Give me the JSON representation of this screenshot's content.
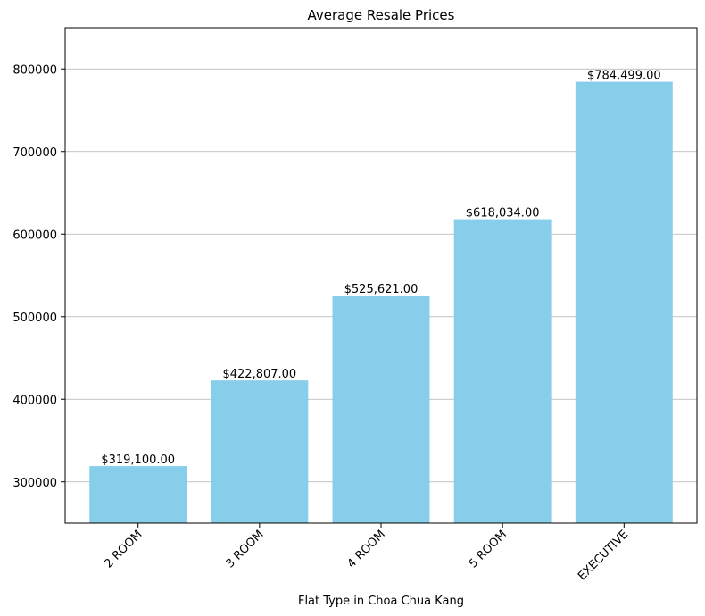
{
  "chart_data": {
    "type": "bar",
    "title": "Average Resale Prices",
    "xlabel": "Flat Type in Choa Chua Kang",
    "ylabel": "",
    "categories": [
      "2 ROOM",
      "3 ROOM",
      "4 ROOM",
      "5 ROOM",
      "EXECUTIVE"
    ],
    "values": [
      319100,
      422807,
      525621,
      618034,
      784499
    ],
    "value_labels": [
      "$319,100.00",
      "$422,807.00",
      "$525,621.00",
      "$618,034.00",
      "$784,499.00"
    ],
    "ylim": [
      250000,
      850000
    ],
    "yticks": [
      300000,
      400000,
      500000,
      600000,
      700000,
      800000
    ],
    "ytick_labels": [
      "300000",
      "400000",
      "500000",
      "600000",
      "700000",
      "800000"
    ],
    "grid": "y-axis only",
    "bar_color": "#87CEEB",
    "grid_color": "#b0b0b0",
    "xtick_rotation_deg": 45
  }
}
